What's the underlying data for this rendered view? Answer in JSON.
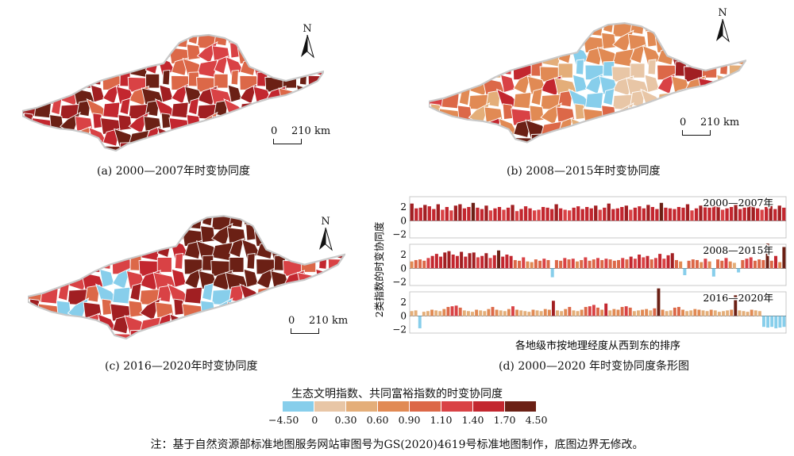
{
  "panels": [
    {
      "caption": "(a) 2000—2007年时变协同度"
    },
    {
      "caption": "(b) 2008—2015年时变协同度"
    },
    {
      "caption": "(c) 2016—2020年时变协同度"
    },
    {
      "caption": "(d) 2000—2020 年时变协同度条形图"
    }
  ],
  "north_label": "N",
  "scale": {
    "zero": "0",
    "distance": "210 km"
  },
  "legend": {
    "title": "生态文明指数、共同富裕指数的时变协同度",
    "ticks": [
      "−4.50",
      "0",
      "0.30",
      "0.60",
      "0.90",
      "1.10",
      "1.40",
      "1.70",
      "4.50"
    ],
    "colors": [
      "#87ceeb",
      "#e8c6a6",
      "#e4ae79",
      "#e18a54",
      "#dc6848",
      "#d94245",
      "#c3272f",
      "#a11f22",
      "#6b2015"
    ]
  },
  "note": "注：基于自然资源部标准地图服务网站审图号为GS(2020)4619号标准地图制作，底图边界无修改。",
  "chart_data": {
    "type": "bar",
    "ylabel": "2类指数的时变协同度",
    "xlabel": "各地级市按地理经度从西到东的排序",
    "yticks": [
      2,
      0,
      -2
    ],
    "ylim": [
      -2.5,
      3.5
    ],
    "series": [
      {
        "name": "2000—2007年",
        "values": [
          2.5,
          1.8,
          1.9,
          2.3,
          2.1,
          1.7,
          2.4,
          1.6,
          2.0,
          1.5,
          2.2,
          2.4,
          1.8,
          2.0,
          2.6,
          1.9,
          1.7,
          2.2,
          1.5,
          1.8,
          2.0,
          1.6,
          1.9,
          2.3,
          1.4,
          1.7,
          2.1,
          1.8,
          1.5,
          1.6,
          2.0,
          1.9,
          1.7,
          2.4,
          1.8,
          1.6,
          1.5,
          1.9,
          2.1,
          1.7,
          2.0,
          1.8,
          2.2,
          1.6,
          1.9,
          2.5,
          1.7,
          1.8,
          2.0,
          2.2,
          1.6,
          1.9,
          2.1,
          1.8,
          2.3,
          2.0,
          1.7,
          2.6,
          1.9,
          1.8,
          1.7,
          2.0,
          1.9,
          2.4,
          1.5,
          1.8,
          2.2,
          2.0,
          1.9,
          2.1,
          2.3,
          1.6,
          1.8,
          2.0,
          2.5,
          1.7,
          1.9,
          2.2,
          2.4,
          1.8,
          1.6,
          2.0,
          2.5,
          1.7,
          2.2,
          1.9
        ]
      },
      {
        "name": "2008—2015年",
        "values": [
          1.0,
          1.2,
          1.3,
          1.1,
          1.5,
          1.8,
          2.1,
          1.7,
          2.3,
          2.5,
          2.0,
          1.8,
          2.4,
          1.7,
          2.2,
          2.3,
          1.6,
          1.8,
          2.2,
          1.5,
          1.9,
          2.6,
          1.7,
          2.0,
          1.8,
          1.2,
          1.1,
          1.6,
          1.0,
          0.9,
          1.3,
          1.1,
          1.4,
          1.2,
          -1.3,
          1.2,
          1.1,
          1.5,
          1.3,
          1.4,
          1.0,
          1.2,
          1.6,
          1.1,
          1.3,
          1.5,
          1.2,
          1.4,
          1.3,
          1.1,
          1.2,
          1.5,
          1.3,
          1.7,
          1.4,
          2.0,
          1.6,
          1.8,
          1.3,
          1.5,
          2.1,
          1.4,
          1.9,
          2.2,
          1.2,
          1.0,
          -1.0,
          1.1,
          1.3,
          1.2,
          0.9,
          1.4,
          1.0,
          -1.2,
          1.3,
          1.1,
          1.5,
          1.0,
          0.8,
          -0.6,
          1.2,
          1.4,
          1.6,
          1.1,
          1.3,
          1.2,
          3.6,
          1.1,
          1.8,
          0.9,
          3.1
        ]
      },
      {
        "name": "2016—2020年",
        "values": [
          0.7,
          0.8,
          -1.8,
          0.6,
          0.7,
          0.9,
          0.8,
          0.7,
          1.0,
          1.3,
          1.4,
          1.5,
          1.2,
          0.8,
          0.7,
          0.6,
          0.9,
          0.8,
          0.7,
          1.0,
          1.3,
          0.9,
          0.8,
          0.7,
          1.0,
          1.4,
          0.9,
          0.8,
          0.7,
          0.6,
          0.9,
          0.8,
          0.7,
          1.0,
          0.9,
          2.2,
          0.8,
          0.7,
          1.0,
          1.3,
          0.8,
          0.7,
          0.9,
          1.3,
          1.4,
          1.6,
          1.2,
          0.9,
          1.8,
          0.8,
          1.0,
          0.9,
          1.3,
          1.4,
          1.2,
          0.7,
          0.8,
          0.9,
          1.0,
          0.8,
          1.1,
          4.0,
          0.9,
          0.7,
          0.8,
          1.2,
          1.3,
          0.9,
          0.7,
          0.8,
          1.0,
          0.9,
          0.8,
          0.7,
          0.9,
          0.8,
          0.6,
          0.7,
          0.8,
          0.9,
          3.0,
          0.8,
          0.7,
          0.6,
          0.9,
          0.8,
          0.7,
          -1.6,
          -1.7,
          -1.6,
          -1.8,
          -1.7,
          -1.6
        ]
      }
    ]
  }
}
